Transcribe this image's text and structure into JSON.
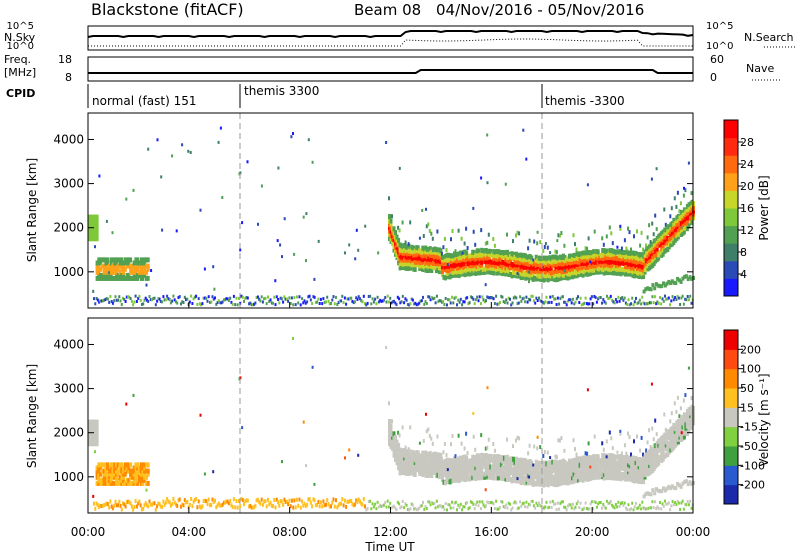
{
  "header": {
    "title": "Blackstone (fitACF)",
    "beam": "Beam 08",
    "dates": "04/Nov/2016 - 05/Nov/2016"
  },
  "panels": {
    "nsky_label": "N.Sky",
    "nsearch_label": "N.Search",
    "nsky_ticks": [
      "10^5",
      "10^0"
    ],
    "nsearch_ticks": [
      "10^5",
      "10^0"
    ],
    "freq_label": "Freq.",
    "freq_unit": "[MHz]",
    "freq_ticks": [
      "18",
      "8"
    ],
    "nave_label": "Nave",
    "nave_ticks": [
      "60",
      "0"
    ],
    "cpid_label": "CPID",
    "cpid_segments": [
      {
        "label": "normal (fast) 151",
        "start_hour": 0,
        "end_hour": 6
      },
      {
        "label": "themis 3300",
        "start_hour": 6,
        "end_hour": 18
      },
      {
        "label": "themis -3300",
        "start_hour": 18,
        "end_hour": 24
      }
    ]
  },
  "chart_data": [
    {
      "type": "heatmap",
      "name": "power",
      "ylabel": "Slant Range [km]",
      "xlabel": "Time UT",
      "xlim": [
        0,
        24
      ],
      "ylim": [
        180,
        4600
      ],
      "yticks": [
        "1000",
        "2000",
        "3000",
        "4000"
      ],
      "xticks": [
        "00:00",
        "04:00",
        "08:00",
        "12:00",
        "16:00",
        "20:00",
        "00:00"
      ],
      "colorbar": {
        "label": "Power [dB]",
        "ticks": [
          "4",
          "8",
          "12",
          "16",
          "20",
          "24",
          "28"
        ],
        "colors": [
          "#1a1aff",
          "#2a4ab8",
          "#3f7f6a",
          "#52a052",
          "#7ec83a",
          "#c8d62a",
          "#ffa21a",
          "#ff6a10",
          "#ff2a10",
          "#ff0000"
        ]
      }
    },
    {
      "type": "heatmap",
      "name": "velocity",
      "ylabel": "Slant Range [km]",
      "xlabel": "Time UT",
      "xlim": [
        0,
        24
      ],
      "ylim": [
        180,
        4600
      ],
      "yticks": [
        "1000",
        "2000",
        "3000",
        "4000"
      ],
      "xticks": [
        "00:00",
        "04:00",
        "08:00",
        "12:00",
        "16:00",
        "20:00",
        "00:00"
      ],
      "colorbar": {
        "label": "Velocity [m s⁻¹]",
        "ticks": [
          "200",
          "100",
          "50",
          "15",
          "-15",
          "-50",
          "-100",
          "-200"
        ],
        "colors": [
          "#1a2aaa",
          "#2a5ad0",
          "#3fa03f",
          "#80d040",
          "#c8c8c0",
          "#ffc020",
          "#ff8a00",
          "#ff4a10",
          "#ee0000"
        ]
      }
    }
  ],
  "xaxis": {
    "label": "Time UT"
  }
}
